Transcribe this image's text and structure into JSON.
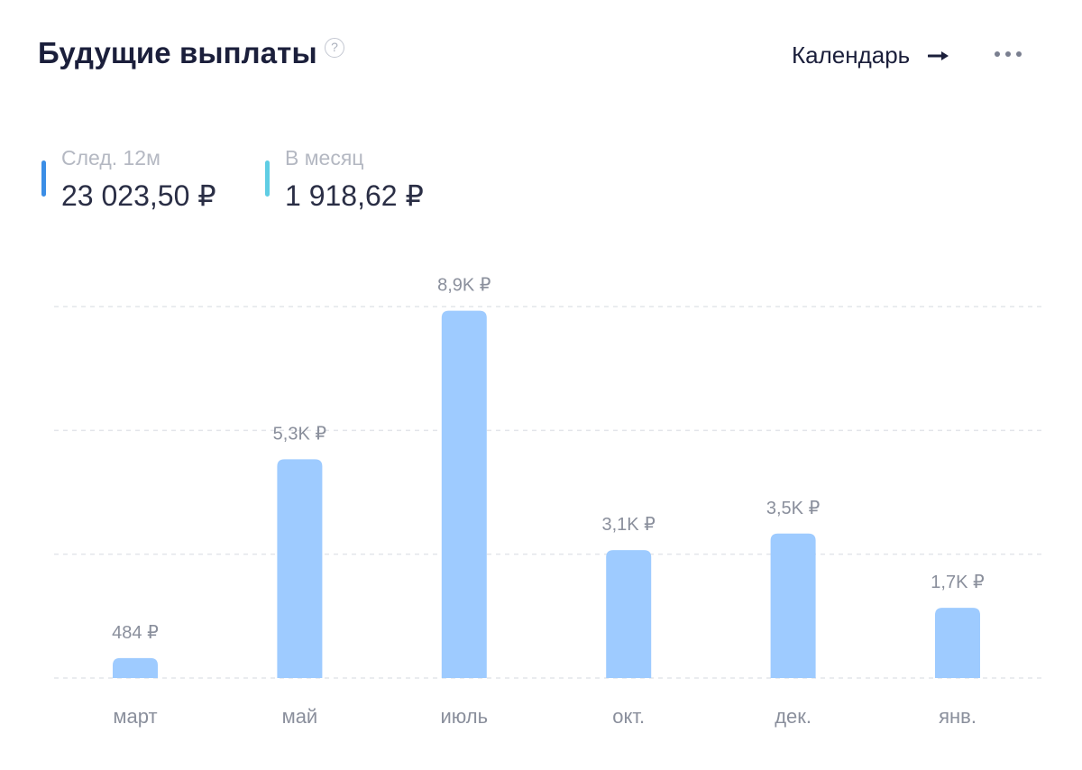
{
  "header": {
    "title": "Будущие выплаты",
    "help_icon": "question-icon",
    "calendar_label": "Календарь",
    "calendar_icon": "arrow-right-icon",
    "more_icon": "more-dots-icon"
  },
  "stats": [
    {
      "label": "След. 12м",
      "value": "23 023,50 ₽",
      "color": "#3b8ee6"
    },
    {
      "label": "В месяц",
      "value": "1 918,62 ₽",
      "color": "#5fcde4"
    }
  ],
  "colors": {
    "bar": "#9ecbff",
    "grid": "#e3e5ea",
    "value_label": "#8a8f9c",
    "category_label": "#8a8f9c"
  },
  "chart_data": {
    "type": "bar",
    "categories": [
      "март",
      "май",
      "июль",
      "окт.",
      "дек.",
      "янв."
    ],
    "values": [
      484,
      5300,
      8900,
      3100,
      3500,
      1700
    ],
    "value_labels": [
      "484 ₽",
      "5,3K ₽",
      "8,9K ₽",
      "3,1K ₽",
      "3,5K ₽",
      "1,7K ₽"
    ],
    "currency": "₽",
    "ylim": [
      0,
      9000
    ],
    "grid": true,
    "grid_lines": 4
  }
}
